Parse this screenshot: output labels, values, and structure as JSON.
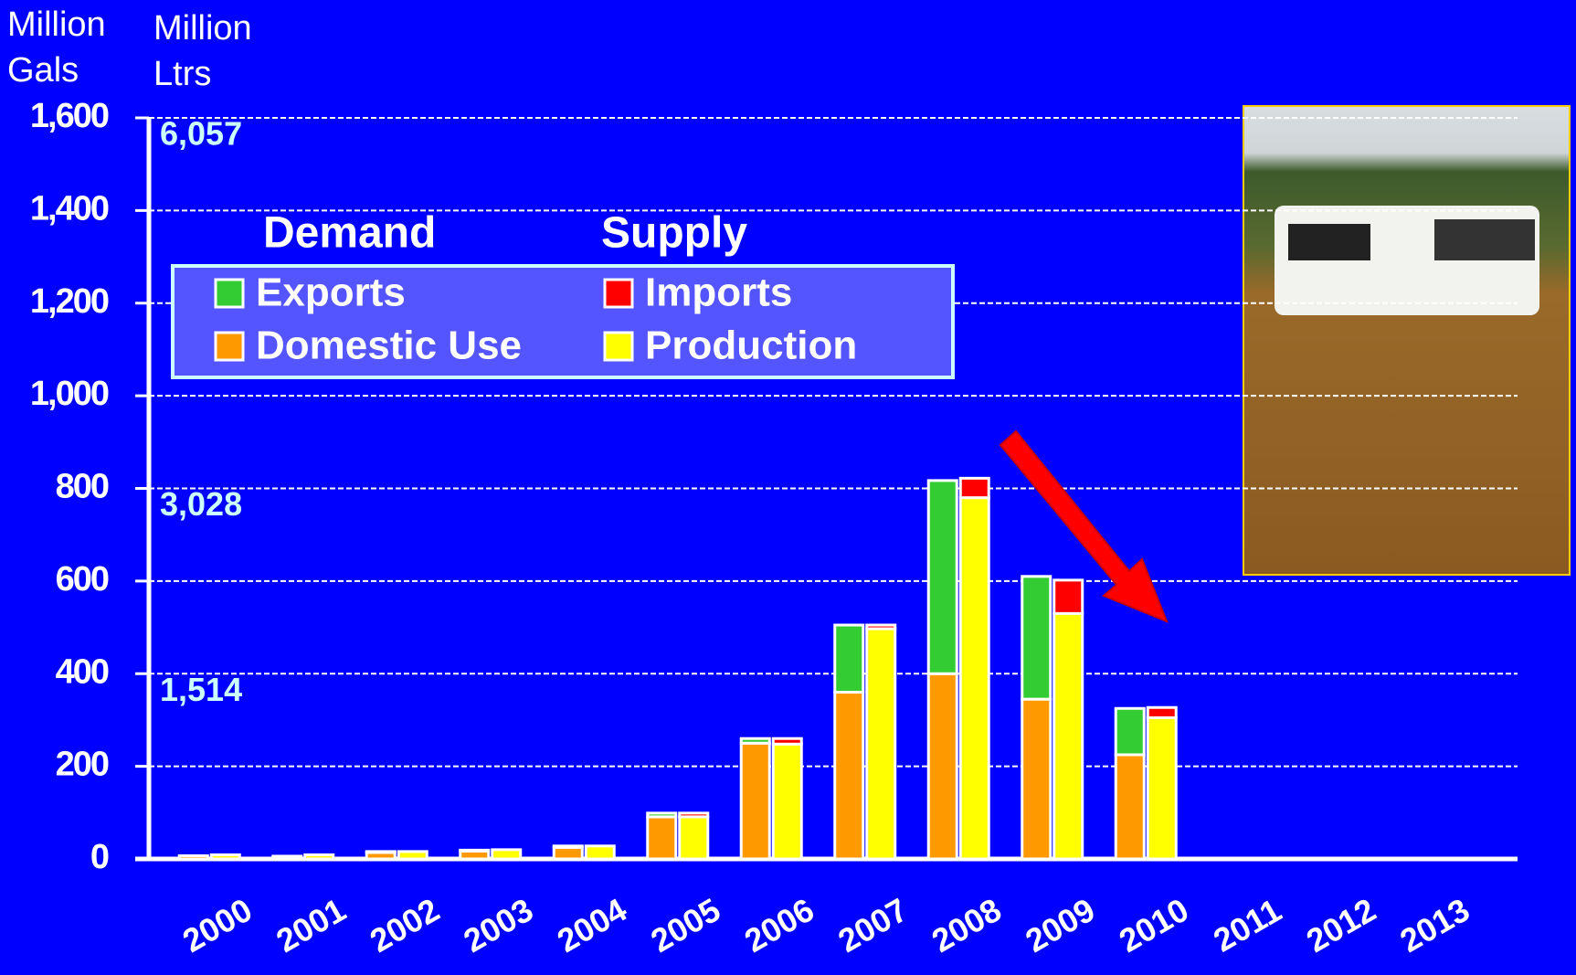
{
  "chart_data": {
    "type": "bar",
    "y_label": "Million Gals",
    "y2_label": "Million Ltrs",
    "categories": [
      "2000",
      "2001",
      "2002",
      "2003",
      "2004",
      "2005",
      "2006",
      "2007",
      "2008",
      "2009",
      "2010",
      "2011",
      "2012",
      "2013"
    ],
    "stacks": [
      {
        "name": "Demand",
        "series": [
          {
            "name": "Domestic Use",
            "color": "#ff9900",
            "values": [
              7,
              6,
              14,
              17,
              25,
              91,
              250,
              360,
              400,
              345,
              225,
              null,
              null,
              null
            ]
          },
          {
            "name": "Exports",
            "color": "#33cc33",
            "values": [
              0,
              0,
              2,
              2,
              3,
              8,
              10,
              145,
              417,
              265,
              100,
              null,
              null,
              null
            ]
          }
        ]
      },
      {
        "name": "Supply",
        "series": [
          {
            "name": "Production",
            "color": "#ffff00",
            "values": [
              9,
              9,
              16,
              20,
              28,
              91,
              248,
              497,
              780,
              530,
              305,
              null,
              null,
              null
            ]
          },
          {
            "name": "Imports",
            "color": "#ff0000",
            "values": [
              0,
              0,
              0,
              0,
              0,
              8,
              12,
              8,
              42,
              72,
              22,
              null,
              null,
              null
            ]
          }
        ]
      }
    ],
    "ylim": [
      0,
      1600
    ],
    "yticks": [
      0,
      200,
      400,
      600,
      800,
      {
        "value": 1000,
        "label": "1,000"
      },
      {
        "value": 1200,
        "label": "1,200"
      },
      {
        "value": 1400,
        "label": "1,400"
      },
      {
        "value": 1600,
        "label": "1,600"
      }
    ],
    "y2lim": [
      0,
      6057
    ],
    "y2ticks": [
      {
        "value": 1514,
        "label": "1,514"
      },
      {
        "value": 3028,
        "label": "3,028"
      },
      {
        "value": 6057,
        "label": "6,057"
      }
    ],
    "grid": true
  }
}
